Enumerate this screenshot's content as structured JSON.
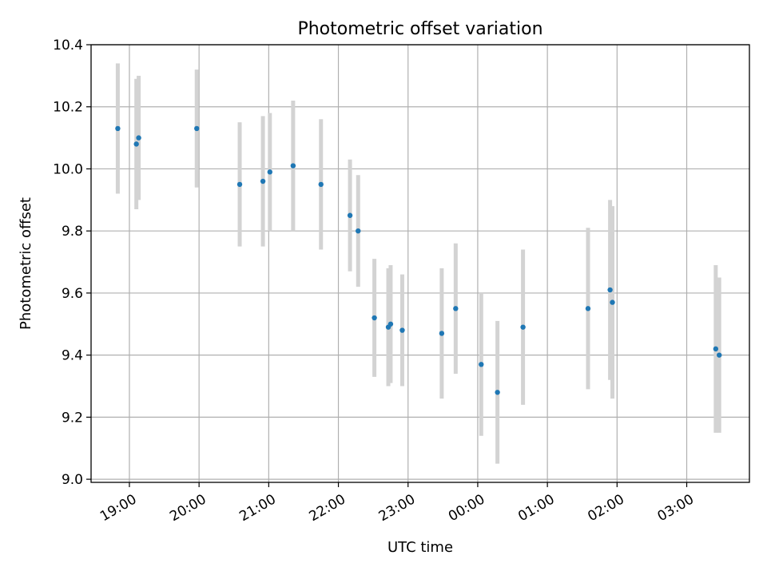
{
  "chart_data": {
    "type": "scatter",
    "title": "Photometric offset variation",
    "xlabel": "UTC time",
    "ylabel": "Photometric offset",
    "x_tick_labels": [
      "19:00",
      "20:00",
      "21:00",
      "22:00",
      "23:00",
      "00:00",
      "01:00",
      "02:00",
      "03:00"
    ],
    "x_tick_hours": [
      19,
      20,
      21,
      22,
      23,
      24,
      25,
      26,
      27
    ],
    "xlim_hours": [
      18.45,
      27.9
    ],
    "ylim": [
      8.99,
      10.4
    ],
    "y_ticks": [
      9.0,
      9.2,
      9.4,
      9.6,
      9.8,
      10.0,
      10.2,
      10.4
    ],
    "y_tick_labels": [
      "9.0",
      "9.2",
      "9.4",
      "9.6",
      "9.8",
      "10.0",
      "10.2",
      "10.4"
    ],
    "grid": true,
    "colors": {
      "point": "#1f77b4",
      "errorbar": "#d3d3d3"
    },
    "points": [
      {
        "time": "18:50",
        "y": 10.13,
        "err": 0.21
      },
      {
        "time": "19:06",
        "y": 10.08,
        "err": 0.21
      },
      {
        "time": "19:08",
        "y": 10.1,
        "err": 0.2
      },
      {
        "time": "19:58",
        "y": 10.13,
        "err": 0.19
      },
      {
        "time": "20:35",
        "y": 9.95,
        "err": 0.2
      },
      {
        "time": "20:55",
        "y": 9.96,
        "err": 0.21
      },
      {
        "time": "21:01",
        "y": 9.99,
        "err": 0.19
      },
      {
        "time": "21:21",
        "y": 10.01,
        "err": 0.21
      },
      {
        "time": "21:45",
        "y": 9.95,
        "err": 0.21
      },
      {
        "time": "22:10",
        "y": 9.85,
        "err": 0.18
      },
      {
        "time": "22:17",
        "y": 9.8,
        "err": 0.18
      },
      {
        "time": "22:31",
        "y": 9.52,
        "err": 0.19
      },
      {
        "time": "22:43",
        "y": 9.49,
        "err": 0.19
      },
      {
        "time": "22:45",
        "y": 9.5,
        "err": 0.19
      },
      {
        "time": "22:55",
        "y": 9.48,
        "err": 0.18
      },
      {
        "time": "23:29",
        "y": 9.47,
        "err": 0.21
      },
      {
        "time": "23:41",
        "y": 9.55,
        "err": 0.21
      },
      {
        "time": "00:03",
        "y": 9.37,
        "err": 0.23
      },
      {
        "time": "00:17",
        "y": 9.28,
        "err": 0.23
      },
      {
        "time": "00:39",
        "y": 9.49,
        "err": 0.25
      },
      {
        "time": "01:35",
        "y": 9.55,
        "err": 0.26
      },
      {
        "time": "01:54",
        "y": 9.61,
        "err": 0.29
      },
      {
        "time": "01:56",
        "y": 9.57,
        "err": 0.31
      },
      {
        "time": "03:25",
        "y": 9.42,
        "err": 0.27
      },
      {
        "time": "03:28",
        "y": 9.4,
        "err": 0.25
      }
    ]
  }
}
